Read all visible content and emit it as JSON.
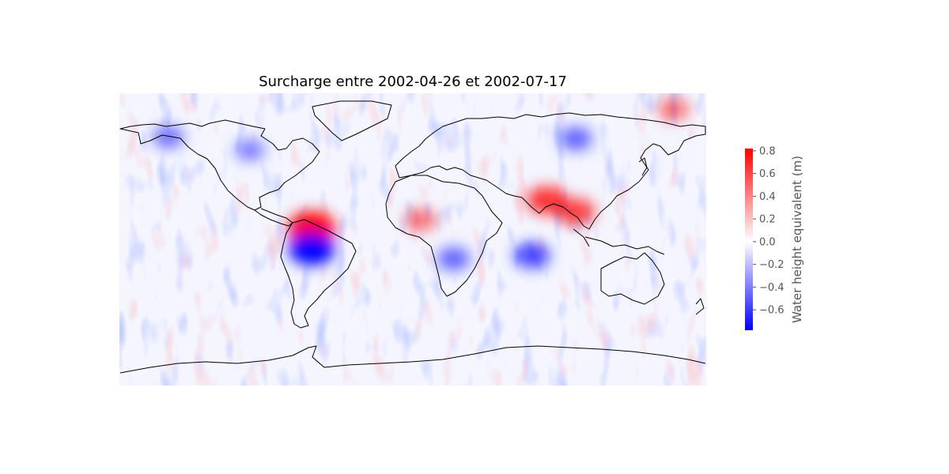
{
  "map": {
    "title": "Surcharge entre 2002-04-26 et 2002-07-17",
    "projection": "plate carrée",
    "colormap": "bwr",
    "colors": {
      "low": "#0000ff",
      "mid": "#ffffff",
      "high": "#ff0000",
      "coast": "#000000"
    },
    "colorbar": {
      "label": "Water height equivalent (m)",
      "vmin": -0.78,
      "vmax": 0.82,
      "ticks": [
        {
          "value": 0.8,
          "label": "0.8"
        },
        {
          "value": 0.6,
          "label": "0.6"
        },
        {
          "value": 0.4,
          "label": "0.4"
        },
        {
          "value": 0.2,
          "label": "0.2"
        },
        {
          "value": 0.0,
          "label": "0.0"
        },
        {
          "value": -0.2,
          "label": "−0.2"
        },
        {
          "value": -0.4,
          "label": "−0.4"
        },
        {
          "value": -0.6,
          "label": "−0.6"
        }
      ]
    },
    "anomalies": [
      {
        "region": "Northern South America",
        "lon": -62,
        "lat": 7,
        "value": 0.8
      },
      {
        "region": "Central Amazon",
        "lon": -62,
        "lat": -6,
        "value": -0.75
      },
      {
        "region": "Northern India / Ganges",
        "lon": 82,
        "lat": 24,
        "value": 0.55
      },
      {
        "region": "Indochina",
        "lon": 100,
        "lat": 17,
        "value": 0.5
      },
      {
        "region": "Sahel",
        "lon": 5,
        "lat": 12,
        "value": 0.3
      },
      {
        "region": "Zambezi basin",
        "lon": 25,
        "lat": -12,
        "value": -0.35
      },
      {
        "region": "Siberia",
        "lon": 100,
        "lat": 62,
        "value": -0.35
      },
      {
        "region": "Alaska",
        "lon": -150,
        "lat": 63,
        "value": -0.3
      },
      {
        "region": "Canada",
        "lon": -100,
        "lat": 55,
        "value": -0.25
      },
      {
        "region": "Indian Ocean",
        "lon": 73,
        "lat": -10,
        "value": -0.45
      },
      {
        "region": "Arctic",
        "lon": 160,
        "lat": 80,
        "value": 0.3
      }
    ]
  }
}
